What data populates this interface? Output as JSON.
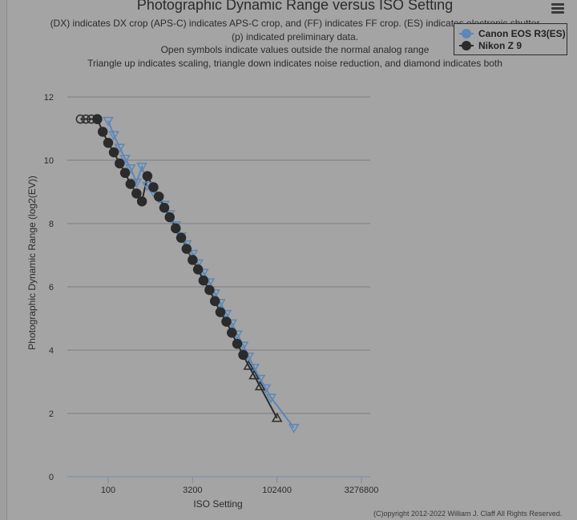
{
  "chart_data": {
    "type": "line",
    "title": "Photographic Dynamic Range versus ISO Setting",
    "subtitle_lines": [
      "(DX) indicates DX crop (APS-C) indicates APS-C crop, and (FF) indicates FF crop. (ES) indicates electronic shutter",
      "(p) indicated preliminary data.",
      "Open symbols indicate values outside the normal analog range",
      "Triangle up indicates scaling, triangle down indicates noise reduction, and diamond indicates both"
    ],
    "xlabel": "ISO Setting",
    "ylabel": "Photographic Dynamic Range (log2(EV))",
    "x_scale": "log",
    "xlim": [
      25,
      5000000
    ],
    "ylim": [
      0,
      12
    ],
    "x_ticks": [
      100,
      3200,
      102400,
      3276800
    ],
    "x_tick_labels": [
      "100",
      "3200",
      "102400",
      "3276800"
    ],
    "y_ticks": [
      0,
      2,
      4,
      6,
      8,
      10,
      12
    ],
    "y_tick_labels": [
      "0",
      "2",
      "4",
      "6",
      "8",
      "10",
      "12"
    ],
    "grid": true,
    "legend_position": "top-right",
    "series": [
      {
        "name": "Canon EOS R3(ES)",
        "color": "#5b87b9",
        "points": [
          {
            "x": 100,
            "y": 11.25,
            "marker": "triangle-down",
            "open": true
          },
          {
            "x": 126,
            "y": 10.8,
            "marker": "triangle-down",
            "open": true
          },
          {
            "x": 160,
            "y": 10.4,
            "marker": "triangle-down",
            "open": true
          },
          {
            "x": 200,
            "y": 10.05,
            "marker": "triangle-down",
            "open": true
          },
          {
            "x": 250,
            "y": 9.75,
            "marker": "triangle-down",
            "open": true
          },
          {
            "x": 320,
            "y": 9.3,
            "marker": "triangle-down",
            "open": true
          },
          {
            "x": 400,
            "y": 9.8,
            "marker": "triangle-down",
            "open": true
          },
          {
            "x": 500,
            "y": 9.2,
            "marker": "triangle-down",
            "open": true
          },
          {
            "x": 640,
            "y": 9.0,
            "marker": "triangle-down",
            "open": true
          },
          {
            "x": 800,
            "y": 8.8,
            "marker": "triangle-down",
            "open": true
          },
          {
            "x": 1000,
            "y": 8.6,
            "marker": "triangle-down",
            "open": true
          },
          {
            "x": 1250,
            "y": 8.3,
            "marker": "triangle-down",
            "open": true
          },
          {
            "x": 1600,
            "y": 7.95,
            "marker": "triangle-down",
            "open": true
          },
          {
            "x": 2000,
            "y": 7.6,
            "marker": "triangle-down",
            "open": true
          },
          {
            "x": 2500,
            "y": 7.35,
            "marker": "triangle-down",
            "open": true
          },
          {
            "x": 3200,
            "y": 7.05,
            "marker": "triangle-down",
            "open": true
          },
          {
            "x": 4000,
            "y": 6.75,
            "marker": "triangle-down",
            "open": true
          },
          {
            "x": 5000,
            "y": 6.45,
            "marker": "triangle-down",
            "open": true
          },
          {
            "x": 6400,
            "y": 6.15,
            "marker": "triangle-down",
            "open": true
          },
          {
            "x": 8000,
            "y": 5.8,
            "marker": "triangle-down",
            "open": true
          },
          {
            "x": 10000,
            "y": 5.5,
            "marker": "triangle-down",
            "open": true
          },
          {
            "x": 12800,
            "y": 5.15,
            "marker": "triangle-down",
            "open": true
          },
          {
            "x": 16000,
            "y": 4.85,
            "marker": "triangle-down",
            "open": true
          },
          {
            "x": 20000,
            "y": 4.5,
            "marker": "triangle-down",
            "open": true
          },
          {
            "x": 25600,
            "y": 4.15,
            "marker": "triangle-down",
            "open": true
          },
          {
            "x": 32000,
            "y": 3.8,
            "marker": "triangle-down",
            "open": true
          },
          {
            "x": 40000,
            "y": 3.45,
            "marker": "triangle-down",
            "open": true
          },
          {
            "x": 51200,
            "y": 3.1,
            "marker": "triangle-down",
            "open": true
          },
          {
            "x": 64000,
            "y": 2.8,
            "marker": "triangle-down",
            "open": true
          },
          {
            "x": 80000,
            "y": 2.5,
            "marker": "triangle-down",
            "open": true
          },
          {
            "x": 204800,
            "y": 1.55,
            "marker": "triangle-down",
            "open": true
          }
        ]
      },
      {
        "name": "Nikon Z 9",
        "color": "#2b2b2b",
        "points": [
          {
            "x": 32,
            "y": 11.3,
            "marker": "circle",
            "open": true
          },
          {
            "x": 40,
            "y": 11.3,
            "marker": "circle",
            "open": true
          },
          {
            "x": 50,
            "y": 11.3,
            "marker": "circle",
            "open": true
          },
          {
            "x": 64,
            "y": 11.3,
            "marker": "circle",
            "open": false
          },
          {
            "x": 80,
            "y": 10.9,
            "marker": "circle",
            "open": false
          },
          {
            "x": 100,
            "y": 10.55,
            "marker": "circle",
            "open": false
          },
          {
            "x": 126,
            "y": 10.25,
            "marker": "circle",
            "open": false
          },
          {
            "x": 160,
            "y": 9.9,
            "marker": "circle",
            "open": false
          },
          {
            "x": 200,
            "y": 9.6,
            "marker": "circle",
            "open": false
          },
          {
            "x": 250,
            "y": 9.25,
            "marker": "circle",
            "open": false
          },
          {
            "x": 320,
            "y": 8.95,
            "marker": "circle",
            "open": false
          },
          {
            "x": 400,
            "y": 8.7,
            "marker": "circle",
            "open": false
          },
          {
            "x": 500,
            "y": 9.5,
            "marker": "circle",
            "open": false
          },
          {
            "x": 640,
            "y": 9.15,
            "marker": "circle",
            "open": false
          },
          {
            "x": 800,
            "y": 8.85,
            "marker": "circle",
            "open": false
          },
          {
            "x": 1000,
            "y": 8.5,
            "marker": "circle",
            "open": false
          },
          {
            "x": 1250,
            "y": 8.2,
            "marker": "circle",
            "open": false
          },
          {
            "x": 1600,
            "y": 7.85,
            "marker": "circle",
            "open": false
          },
          {
            "x": 2000,
            "y": 7.55,
            "marker": "circle",
            "open": false
          },
          {
            "x": 2500,
            "y": 7.2,
            "marker": "circle",
            "open": false
          },
          {
            "x": 3200,
            "y": 6.85,
            "marker": "circle",
            "open": false
          },
          {
            "x": 4000,
            "y": 6.55,
            "marker": "circle",
            "open": false
          },
          {
            "x": 5000,
            "y": 6.2,
            "marker": "circle",
            "open": false
          },
          {
            "x": 6400,
            "y": 5.9,
            "marker": "circle",
            "open": false
          },
          {
            "x": 8000,
            "y": 5.55,
            "marker": "circle",
            "open": false
          },
          {
            "x": 10000,
            "y": 5.2,
            "marker": "circle",
            "open": false
          },
          {
            "x": 12800,
            "y": 4.9,
            "marker": "circle",
            "open": false
          },
          {
            "x": 16000,
            "y": 4.55,
            "marker": "circle",
            "open": false
          },
          {
            "x": 20000,
            "y": 4.2,
            "marker": "circle",
            "open": false
          },
          {
            "x": 25600,
            "y": 3.85,
            "marker": "circle",
            "open": false
          },
          {
            "x": 32000,
            "y": 3.5,
            "marker": "triangle-up",
            "open": true
          },
          {
            "x": 40000,
            "y": 3.2,
            "marker": "triangle-up",
            "open": true
          },
          {
            "x": 51200,
            "y": 2.85,
            "marker": "triangle-up",
            "open": true
          },
          {
            "x": 102400,
            "y": 1.85,
            "marker": "triangle-up",
            "open": true
          }
        ]
      }
    ]
  },
  "copyright": "(C)opyright 2012-2022 William J. Claff All Rights Reserved."
}
